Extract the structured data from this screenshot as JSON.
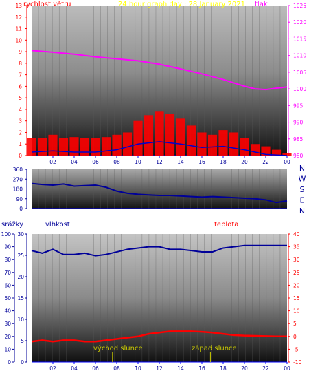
{
  "header": {
    "wind_label": "rychlost větru",
    "title": "24 hour graph day : 28 January 2021",
    "pressure_label": "tlak"
  },
  "lower": {
    "precip_label": "srážky",
    "humidity_label": "vlhkost",
    "temp_label": "teplota",
    "sunrise_label": "východ slunce",
    "sunset_label": "západ slunce"
  },
  "colors": {
    "wind": "#ff0000",
    "gust": "#0000cc",
    "pressure": "#ff00ff",
    "direction": "#000099",
    "humidity": "#000099",
    "temperature": "#ff0000",
    "title": "#ffff00",
    "marker": "#cccc00"
  },
  "chart_data": [
    {
      "type": "line",
      "name": "wind and pressure",
      "x_ticks": [
        "02",
        "04",
        "06",
        "08",
        "10",
        "12",
        "14",
        "16",
        "18",
        "20",
        "22",
        "00"
      ],
      "y_left_ticks": [
        "0",
        "1",
        "2",
        "3",
        "4",
        "5",
        "6",
        "7",
        "8",
        "9",
        "10",
        "11",
        "12",
        "13"
      ],
      "y_left_lim": [
        0,
        13
      ],
      "y_right_ticks": [
        "980",
        "985",
        "990",
        "995",
        "1000",
        "1005",
        "1010",
        "1015",
        "1020",
        "1025"
      ],
      "y_right_lim": [
        980,
        1025
      ],
      "wind": [
        {
          "x": 0,
          "y": 1.5
        },
        {
          "x": 1,
          "y": 1.5
        },
        {
          "x": 2,
          "y": 1.8
        },
        {
          "x": 3,
          "y": 1.5
        },
        {
          "x": 4,
          "y": 1.6
        },
        {
          "x": 5,
          "y": 1.5
        },
        {
          "x": 6,
          "y": 1.5
        },
        {
          "x": 7,
          "y": 1.6
        },
        {
          "x": 8,
          "y": 1.8
        },
        {
          "x": 9,
          "y": 2.0
        },
        {
          "x": 10,
          "y": 3.0
        },
        {
          "x": 11,
          "y": 3.5
        },
        {
          "x": 12,
          "y": 3.8
        },
        {
          "x": 13,
          "y": 3.6
        },
        {
          "x": 14,
          "y": 3.2
        },
        {
          "x": 15,
          "y": 2.6
        },
        {
          "x": 16,
          "y": 2.0
        },
        {
          "x": 17,
          "y": 1.8
        },
        {
          "x": 18,
          "y": 2.2
        },
        {
          "x": 19,
          "y": 2.0
        },
        {
          "x": 20,
          "y": 1.5
        },
        {
          "x": 21,
          "y": 1.0
        },
        {
          "x": 22,
          "y": 0.8
        },
        {
          "x": 23,
          "y": 0.5
        },
        {
          "x": 24,
          "y": 0.2
        }
      ],
      "gust": [
        {
          "x": 0,
          "y": 0.3
        },
        {
          "x": 2,
          "y": 0.4
        },
        {
          "x": 4,
          "y": 0.3
        },
        {
          "x": 6,
          "y": 0.3
        },
        {
          "x": 8,
          "y": 0.5
        },
        {
          "x": 10,
          "y": 1.0
        },
        {
          "x": 12,
          "y": 1.2
        },
        {
          "x": 14,
          "y": 1.0
        },
        {
          "x": 16,
          "y": 0.7
        },
        {
          "x": 18,
          "y": 0.8
        },
        {
          "x": 20,
          "y": 0.5
        },
        {
          "x": 22,
          "y": 0.1
        },
        {
          "x": 24,
          "y": 0.0
        }
      ],
      "pressure": [
        {
          "x": 0,
          "y": 1011.5
        },
        {
          "x": 2,
          "y": 1011.0
        },
        {
          "x": 4,
          "y": 1010.4
        },
        {
          "x": 6,
          "y": 1009.6
        },
        {
          "x": 8,
          "y": 1009.0
        },
        {
          "x": 10,
          "y": 1008.4
        },
        {
          "x": 12,
          "y": 1007.4
        },
        {
          "x": 14,
          "y": 1006.0
        },
        {
          "x": 16,
          "y": 1004.5
        },
        {
          "x": 18,
          "y": 1002.8
        },
        {
          "x": 20,
          "y": 1000.8
        },
        {
          "x": 21,
          "y": 1000.0
        },
        {
          "x": 22,
          "y": 999.8
        },
        {
          "x": 23,
          "y": 1000.2
        },
        {
          "x": 24,
          "y": 1000.6
        }
      ]
    },
    {
      "type": "line",
      "name": "wind direction",
      "x_ticks": [],
      "y_ticks": [
        "0",
        "90",
        "180",
        "270",
        "360"
      ],
      "y_lim": [
        0,
        360
      ],
      "direction_labels": [
        "N",
        "W",
        "S",
        "E",
        "N"
      ],
      "direction": [
        {
          "x": 0,
          "y": 230
        },
        {
          "x": 1,
          "y": 220
        },
        {
          "x": 2,
          "y": 215
        },
        {
          "x": 3,
          "y": 225
        },
        {
          "x": 4,
          "y": 205
        },
        {
          "x": 5,
          "y": 210
        },
        {
          "x": 6,
          "y": 215
        },
        {
          "x": 7,
          "y": 195
        },
        {
          "x": 8,
          "y": 160
        },
        {
          "x": 9,
          "y": 140
        },
        {
          "x": 10,
          "y": 130
        },
        {
          "x": 11,
          "y": 125
        },
        {
          "x": 12,
          "y": 120
        },
        {
          "x": 13,
          "y": 120
        },
        {
          "x": 14,
          "y": 115
        },
        {
          "x": 15,
          "y": 110
        },
        {
          "x": 16,
          "y": 105
        },
        {
          "x": 17,
          "y": 110
        },
        {
          "x": 18,
          "y": 105
        },
        {
          "x": 19,
          "y": 100
        },
        {
          "x": 20,
          "y": 95
        },
        {
          "x": 21,
          "y": 90
        },
        {
          "x": 22,
          "y": 80
        },
        {
          "x": 23,
          "y": 55
        },
        {
          "x": 24,
          "y": 70
        }
      ]
    },
    {
      "type": "line",
      "name": "humidity and temperature",
      "x_ticks": [
        "02",
        "04",
        "06",
        "08",
        "10",
        "12",
        "14",
        "16",
        "18",
        "20",
        "22",
        "00"
      ],
      "y_precip_ticks": [
        "0",
        "10",
        "20",
        "30",
        "40",
        "50",
        "60",
        "70",
        "80",
        "90",
        "100"
      ],
      "y_humidity_ticks": [
        "0",
        "5",
        "10",
        "15",
        "20",
        "25",
        "30"
      ],
      "y_humidity_lim": [
        0,
        30
      ],
      "y_temp_ticks": [
        "-10",
        "-5",
        "0",
        "5",
        "10",
        "15",
        "20",
        "25",
        "30",
        "35",
        "40"
      ],
      "y_temp_lim": [
        -10,
        40
      ],
      "humidity": [
        {
          "x": 0,
          "y": 87
        },
        {
          "x": 1,
          "y": 85
        },
        {
          "x": 2,
          "y": 88
        },
        {
          "x": 3,
          "y": 84
        },
        {
          "x": 4,
          "y": 84
        },
        {
          "x": 5,
          "y": 85
        },
        {
          "x": 6,
          "y": 83
        },
        {
          "x": 7,
          "y": 84
        },
        {
          "x": 8,
          "y": 86
        },
        {
          "x": 9,
          "y": 88
        },
        {
          "x": 10,
          "y": 89
        },
        {
          "x": 11,
          "y": 90
        },
        {
          "x": 12,
          "y": 90
        },
        {
          "x": 13,
          "y": 88
        },
        {
          "x": 14,
          "y": 88
        },
        {
          "x": 15,
          "y": 87
        },
        {
          "x": 16,
          "y": 86
        },
        {
          "x": 17,
          "y": 86
        },
        {
          "x": 18,
          "y": 89
        },
        {
          "x": 19,
          "y": 90
        },
        {
          "x": 20,
          "y": 91
        },
        {
          "x": 21,
          "y": 91
        },
        {
          "x": 22,
          "y": 91
        },
        {
          "x": 23,
          "y": 91
        },
        {
          "x": 24,
          "y": 91
        }
      ],
      "temperature": [
        {
          "x": 0,
          "y": -2.0
        },
        {
          "x": 1,
          "y": -1.5
        },
        {
          "x": 2,
          "y": -2.0
        },
        {
          "x": 3,
          "y": -1.5
        },
        {
          "x": 4,
          "y": -1.5
        },
        {
          "x": 5,
          "y": -2.0
        },
        {
          "x": 6,
          "y": -2.0
        },
        {
          "x": 7,
          "y": -1.5
        },
        {
          "x": 8,
          "y": -1.0
        },
        {
          "x": 9,
          "y": -0.5
        },
        {
          "x": 10,
          "y": 0.0
        },
        {
          "x": 11,
          "y": 1.0
        },
        {
          "x": 12,
          "y": 1.5
        },
        {
          "x": 13,
          "y": 2.0
        },
        {
          "x": 14,
          "y": 2.0
        },
        {
          "x": 15,
          "y": 2.0
        },
        {
          "x": 16,
          "y": 1.8
        },
        {
          "x": 17,
          "y": 1.5
        },
        {
          "x": 18,
          "y": 1.0
        },
        {
          "x": 19,
          "y": 0.5
        },
        {
          "x": 20,
          "y": 0.3
        },
        {
          "x": 21,
          "y": 0.2
        },
        {
          "x": 22,
          "y": 0.1
        },
        {
          "x": 23,
          "y": 0.0
        },
        {
          "x": 24,
          "y": 0.0
        }
      ],
      "sunrise": 7.6,
      "sunset": 16.8
    }
  ]
}
